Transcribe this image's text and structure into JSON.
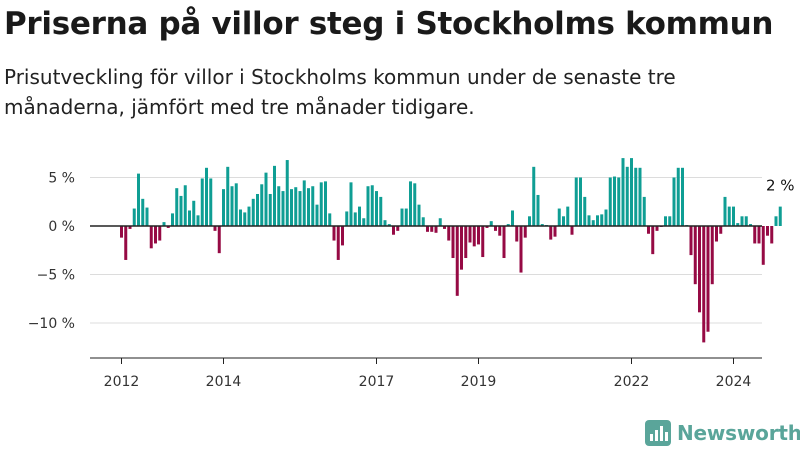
{
  "header": {
    "title": "Priserna på villor steg i Stockholms kommun",
    "subtitle": "Prisutveckling för villor i Stockholms kommun under de senaste tre månaderna, jämfört med tre månader tidigare."
  },
  "brand": {
    "name": "Newsworthy",
    "color": "#5aa59a"
  },
  "chart_data": {
    "type": "bar",
    "title": "",
    "xlabel": "",
    "ylabel": "",
    "colors": {
      "positive": "#0f9e94",
      "negative": "#960a44"
    },
    "ylim": [
      -13.5,
      8
    ],
    "y_ticks": [
      {
        "value": 5,
        "label": "5 %"
      },
      {
        "value": 0,
        "label": "0 %"
      },
      {
        "value": -5,
        "label": "−5 %"
      },
      {
        "value": -10,
        "label": "−10 %"
      }
    ],
    "x_ticks": [
      "2012",
      "2014",
      "2017",
      "2019",
      "2022",
      "2024"
    ],
    "last_value_label": "2 %",
    "grid": true,
    "series": [
      {
        "values": [
          -1.2,
          -3.5,
          -0.3,
          1.8,
          5.4,
          2.8,
          1.9,
          -2.3,
          -1.8,
          -1.5,
          0.4,
          -0.2,
          1.3,
          3.9,
          3.1,
          4.2,
          1.6,
          2.6,
          1.1,
          4.9,
          6.0,
          4.9,
          -0.5,
          -2.8,
          3.8,
          6.1,
          4.1,
          4.4,
          1.7,
          1.4,
          2.0,
          2.8,
          3.3,
          4.3,
          5.5,
          3.3,
          6.2,
          4.1,
          3.6,
          6.8,
          3.8,
          4.0,
          3.6,
          4.7,
          3.9,
          4.1,
          2.2,
          4.5,
          4.6,
          1.3,
          -1.5,
          -3.5,
          -2.0,
          1.5,
          4.5,
          1.4,
          2.0,
          0.8,
          4.1,
          4.2,
          3.6,
          3.0,
          0.6,
          0.2,
          -0.9,
          -0.5,
          1.8,
          1.8,
          4.6,
          4.4,
          2.2,
          0.9,
          -0.6,
          -0.6,
          -0.7,
          0.8,
          -0.3,
          -1.5,
          -3.3,
          -7.2,
          -4.5,
          -3.3,
          -1.7,
          -2.1,
          -1.9,
          -3.2,
          -0.2,
          0.5,
          -0.5,
          -1.0,
          -3.3,
          0.2,
          1.6,
          -1.6,
          -4.8,
          -1.2,
          1.0,
          6.1,
          3.2,
          0.2,
          0.1,
          -1.4,
          -1.1,
          1.8,
          1.0,
          2.0,
          -0.9,
          5.0,
          5.0,
          3.0,
          1.1,
          0.6,
          1.1,
          1.2,
          1.7,
          5.0,
          5.1,
          5.0,
          7.0,
          6.1,
          7.0,
          6.0,
          6.0,
          3.0,
          -0.8,
          -2.9,
          -0.5,
          -0.1,
          1.0,
          1.0,
          5.0,
          6.0,
          6.0,
          0.1,
          -3.0,
          -6.0,
          -8.9,
          -12.0,
          -10.9,
          -6.0,
          -1.6,
          -0.8,
          3.0,
          2.0,
          2.0,
          0.3,
          1.0,
          1.0,
          0.2,
          -1.8,
          -1.8,
          -4.0,
          -1.0,
          -1.8,
          1.0,
          2.0
        ]
      }
    ]
  }
}
